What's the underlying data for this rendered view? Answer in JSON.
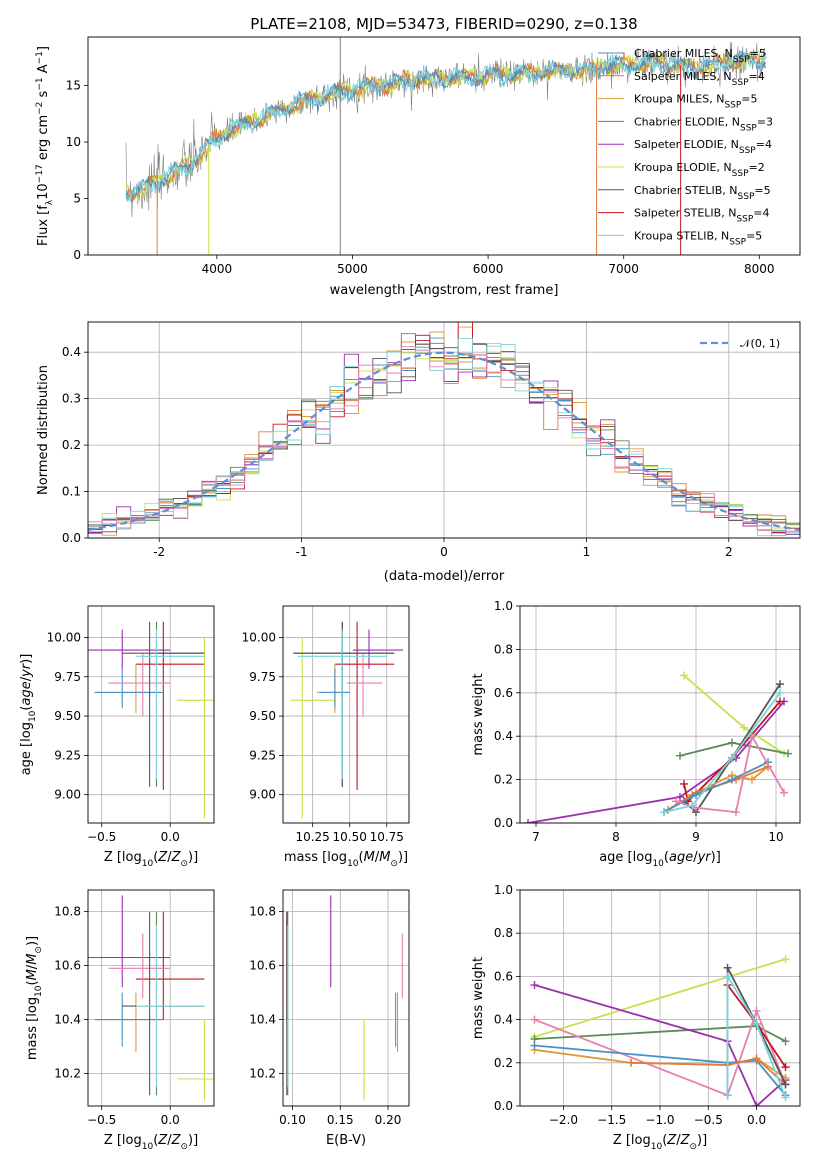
{
  "colors": {
    "chabrier_miles": "#4a90c2",
    "salpeter_miles": "#e07b3a",
    "kroupa_miles": "#e09a3a",
    "chabrier_elodie": "#5b8a5b",
    "salpeter_elodie": "#9b2fae",
    "kroupa_elodie": "#c8e04a",
    "chabrier_stelib": "#555555",
    "salpeter_stelib": "#c01820",
    "kroupa_stelib": "#7dd3dc",
    "pink": "#e67fb0",
    "data_spectrum": "#7f7f7f",
    "normal_curve": "#5b8fd6",
    "grid": "#b0b0b0"
  },
  "chart_data": [
    {
      "id": "spectrum",
      "type": "line",
      "title": "PLATE=2108, MJD=53473, FIBERID=0290, z=0.138",
      "xlabel": "wavelength [Angstrom, rest frame]",
      "ylabel": "Flux [f",
      "ylabel_parts": [
        "Flux [f",
        "λ",
        "10",
        "−17",
        " erg cm",
        "−2",
        " s",
        "−1",
        " A",
        "−1",
        "]"
      ],
      "xlim": [
        3050,
        8300
      ],
      "ylim": [
        0,
        19.3
      ],
      "xticks": [
        4000,
        5000,
        6000,
        7000,
        8000
      ],
      "yticks": [
        0,
        5,
        10,
        15
      ],
      "grid": false,
      "legend_position": "top-right",
      "legend": [
        {
          "label": "Chabrier MILES, N",
          "sub": "SSP",
          "tail": "=5",
          "color_key": "chabrier_miles"
        },
        {
          "label": "Salpeter MILES, N",
          "sub": "SSP",
          "tail": "=4",
          "color_key": "salpeter_miles"
        },
        {
          "label": "Kroupa MILES, N",
          "sub": "SSP",
          "tail": "=5",
          "color_key": "kroupa_miles"
        },
        {
          "label": "Chabrier ELODIE, N",
          "sub": "SSP",
          "tail": "=3",
          "color_key": "chabrier_elodie"
        },
        {
          "label": "Salpeter ELODIE, N",
          "sub": "SSP",
          "tail": "=4",
          "color_key": "salpeter_elodie"
        },
        {
          "label": "Kroupa ELODIE, N",
          "sub": "SSP",
          "tail": "=2",
          "color_key": "kroupa_elodie"
        },
        {
          "label": "Chabrier STELIB, N",
          "sub": "SSP",
          "tail": "=5",
          "color_key": "chabrier_stelib"
        },
        {
          "label": "Salpeter STELIB, N",
          "sub": "SSP",
          "tail": "=4",
          "color_key": "salpeter_stelib"
        },
        {
          "label": "Kroupa STELIB, N",
          "sub": "SSP",
          "tail": "=5",
          "color_key": "kroupa_stelib"
        }
      ],
      "continuum": {
        "x": [
          3330,
          3450,
          3600,
          3800,
          3950,
          4050,
          4300,
          4500,
          4700,
          4900,
          5100,
          5300,
          5500,
          5700,
          5900,
          6100,
          6300,
          6500,
          6700,
          6900,
          7100,
          7300,
          7500,
          7700,
          7900,
          8050
        ],
        "y": [
          5.6,
          5.7,
          6.8,
          8.0,
          9.8,
          10.8,
          12.0,
          13.0,
          13.8,
          14.4,
          14.9,
          15.2,
          15.6,
          15.7,
          15.8,
          16.0,
          16.1,
          16.3,
          16.4,
          16.7,
          16.9,
          17.0,
          16.6,
          16.9,
          17.3,
          17.2
        ]
      },
      "spikes_down": [
        {
          "x": 3560,
          "y": 0.0,
          "color_key": "salpeter_miles"
        },
        {
          "x": 3940,
          "y": 0.0,
          "color_key": "kroupa_elodie"
        },
        {
          "x": 6800,
          "y": 0.0,
          "color_key": "salpeter_miles"
        },
        {
          "x": 7420,
          "y": 0.0,
          "color_key": "salpeter_stelib"
        }
      ],
      "spikes_up": [
        {
          "x": 4910,
          "y": 19.3,
          "color_key": "data_spectrum"
        }
      ]
    },
    {
      "id": "residuals",
      "type": "bar",
      "xlabel": "(data-model)/error",
      "ylabel": "Normed distribution",
      "xlim": [
        -2.5,
        2.5
      ],
      "ylim": [
        0,
        0.465
      ],
      "xticks": [
        -2,
        -1,
        0,
        1,
        2
      ],
      "yticks": [
        0.0,
        0.1,
        0.2,
        0.3,
        0.4
      ],
      "grid": true,
      "legend_position": "top-right",
      "legend": [
        {
          "label": "N(0, 1)",
          "color_key": "normal_curve"
        }
      ],
      "bin_width": 0.1,
      "bin_start": -2.5
    },
    {
      "id": "age_vs_z",
      "type": "scatter",
      "xlabel": "Z [log",
      "ylabel": "age  [log",
      "xlim": [
        -0.6,
        0.32
      ],
      "ylim": [
        8.82,
        10.2
      ],
      "xticks": [
        -0.5,
        0.0
      ],
      "xtick_labels": [
        "−0.5",
        "0.0"
      ],
      "yticks": [
        9.0,
        9.25,
        9.5,
        9.75,
        10.0
      ],
      "ytick_labels": [
        "9.00",
        "9.25",
        "9.50",
        "9.75",
        "10.00"
      ],
      "grid": true
    },
    {
      "id": "age_vs_mass",
      "type": "scatter",
      "xlabel": "mass [log",
      "ylabel": "",
      "xlim": [
        10.05,
        10.9
      ],
      "ylim": [
        8.82,
        10.2
      ],
      "xticks": [
        10.25,
        10.5,
        10.75
      ],
      "xtick_labels": [
        "10.25",
        "10.50",
        "10.75"
      ],
      "yticks": [
        9.0,
        9.25,
        9.5,
        9.75,
        10.0
      ],
      "ytick_labels": [
        "9.00",
        "9.25",
        "9.50",
        "9.75",
        "10.00"
      ],
      "grid": true
    },
    {
      "id": "massweight_vs_age",
      "type": "line",
      "xlabel": "age  [log",
      "ylabel": "mass weight",
      "xlim": [
        6.8,
        10.3
      ],
      "ylim": [
        0,
        1.0
      ],
      "xticks": [
        7,
        8,
        9,
        10
      ],
      "yticks": [
        0.0,
        0.2,
        0.4,
        0.6,
        0.8,
        1.0
      ],
      "ytick_labels": [
        "0.0",
        "0.2",
        "0.4",
        "0.6",
        "0.8",
        "1.0"
      ],
      "grid": true,
      "series": [
        {
          "color_key": "kroupa_elodie",
          "x": [
            8.85,
            9.6,
            10.1
          ],
          "y": [
            0.68,
            0.44,
            0.32
          ]
        },
        {
          "color_key": "chabrier_elodie",
          "x": [
            8.8,
            9.45,
            10.15
          ],
          "y": [
            0.31,
            0.37,
            0.32
          ]
        },
        {
          "color_key": "salpeter_elodie",
          "x": [
            6.9,
            8.8,
            9.5,
            10.1
          ],
          "y": [
            0.0,
            0.12,
            0.3,
            0.56
          ]
        },
        {
          "color_key": "chabrier_stelib",
          "x": [
            8.85,
            9.0,
            9.45,
            10.05
          ],
          "y": [
            0.1,
            0.05,
            0.3,
            0.64
          ]
        },
        {
          "color_key": "salpeter_stelib",
          "x": [
            8.85,
            8.9,
            9.45,
            10.05
          ],
          "y": [
            0.18,
            0.1,
            0.3,
            0.56
          ]
        },
        {
          "color_key": "kroupa_miles",
          "x": [
            8.6,
            8.95,
            9.45,
            9.7,
            9.9
          ],
          "y": [
            0.05,
            0.13,
            0.22,
            0.2,
            0.26
          ]
        },
        {
          "color_key": "salpeter_miles",
          "x": [
            8.65,
            9.0,
            9.5,
            9.9
          ],
          "y": [
            0.06,
            0.14,
            0.2,
            0.26
          ]
        },
        {
          "color_key": "chabrier_miles",
          "x": [
            8.6,
            9.0,
            9.45,
            9.9
          ],
          "y": [
            0.05,
            0.13,
            0.2,
            0.28
          ]
        },
        {
          "color_key": "pink",
          "x": [
            8.75,
            9.0,
            9.5,
            9.7,
            10.1
          ],
          "y": [
            0.1,
            0.07,
            0.05,
            0.4,
            0.14
          ]
        },
        {
          "color_key": "kroupa_stelib",
          "x": [
            8.6,
            8.95,
            9.45,
            10.05
          ],
          "y": [
            0.05,
            0.08,
            0.3,
            0.6
          ]
        }
      ]
    },
    {
      "id": "mass_vs_z",
      "type": "scatter",
      "xlabel": "Z [log",
      "ylabel": "mass [log",
      "xlim": [
        -0.6,
        0.32
      ],
      "ylim": [
        10.08,
        10.88
      ],
      "xticks": [
        -0.5,
        0.0
      ],
      "xtick_labels": [
        "−0.5",
        "0.0"
      ],
      "yticks": [
        10.2,
        10.4,
        10.6,
        10.8
      ],
      "ytick_labels": [
        "10.2",
        "10.4",
        "10.6",
        "10.8"
      ],
      "grid": true
    },
    {
      "id": "mass_vs_ebv",
      "type": "scatter",
      "xlabel": "E(B-V)",
      "ylabel": "",
      "xlim": [
        0.09,
        0.222
      ],
      "ylim": [
        10.08,
        10.88
      ],
      "xticks": [
        0.1,
        0.15,
        0.2
      ],
      "xtick_labels": [
        "0.10",
        "0.15",
        "0.20"
      ],
      "yticks": [
        10.2,
        10.4,
        10.6,
        10.8
      ],
      "ytick_labels": [
        "10.2",
        "10.4",
        "10.6",
        "10.8"
      ],
      "grid": true
    },
    {
      "id": "massweight_vs_z",
      "type": "line",
      "xlabel": "Z [log",
      "ylabel": "mass weight",
      "xlim": [
        -2.45,
        0.45
      ],
      "ylim": [
        0,
        1.0
      ],
      "xticks": [
        -2.0,
        -1.5,
        -1.0,
        -0.5,
        0.0
      ],
      "xtick_labels": [
        "−2.0",
        "−1.5",
        "−1.0",
        "−0.5",
        "0.0"
      ],
      "yticks": [
        0.0,
        0.2,
        0.4,
        0.6,
        0.8,
        1.0
      ],
      "ytick_labels": [
        "0.0",
        "0.2",
        "0.4",
        "0.6",
        "0.8",
        "1.0"
      ],
      "grid": true,
      "series": [
        {
          "color_key": "kroupa_elodie",
          "x": [
            -2.3,
            0.3
          ],
          "y": [
            0.32,
            0.68
          ]
        },
        {
          "color_key": "chabrier_elodie",
          "x": [
            -2.3,
            0.0,
            0.3
          ],
          "y": [
            0.31,
            0.37,
            0.3
          ]
        },
        {
          "color_key": "salpeter_elodie",
          "x": [
            -2.3,
            -0.3,
            0.0,
            0.3
          ],
          "y": [
            0.56,
            0.3,
            0.0,
            0.12
          ]
        },
        {
          "color_key": "pink",
          "x": [
            -2.3,
            -0.3,
            0.0,
            0.3
          ],
          "y": [
            0.4,
            0.05,
            0.44,
            0.1
          ]
        },
        {
          "color_key": "kroupa_miles",
          "x": [
            -2.3,
            -1.3,
            -0.3,
            0.0,
            0.3
          ],
          "y": [
            0.26,
            0.2,
            0.19,
            0.22,
            0.13
          ]
        },
        {
          "color_key": "chabrier_miles",
          "x": [
            -2.3,
            -0.3,
            0.0,
            0.3
          ],
          "y": [
            0.28,
            0.2,
            0.21,
            0.05
          ]
        },
        {
          "color_key": "salpeter_miles",
          "x": [
            -1.3,
            -0.3,
            0.0,
            0.3
          ],
          "y": [
            0.2,
            0.19,
            0.22,
            0.1
          ]
        },
        {
          "color_key": "chabrier_stelib",
          "x": [
            -0.3,
            -0.3,
            0.0,
            0.3
          ],
          "y": [
            0.05,
            0.64,
            0.38,
            0.1
          ]
        },
        {
          "color_key": "salpeter_stelib",
          "x": [
            -0.3,
            0.0,
            0.3
          ],
          "y": [
            0.56,
            0.38,
            0.18
          ]
        },
        {
          "color_key": "kroupa_stelib",
          "x": [
            -0.3,
            -0.3,
            0.0,
            0.3
          ],
          "y": [
            0.05,
            0.6,
            0.38,
            0.04
          ]
        }
      ]
    }
  ],
  "errorbars": {
    "note_keys": [
      "z",
      "age",
      "mass",
      "ebv"
    ],
    "items": [
      {
        "color_key": "chabrier_elodie",
        "z": -0.1,
        "z_err": [
          -0.1,
          0.25
        ],
        "age": 9.9,
        "age_err": [
          9.05,
          10.1
        ],
        "mass": 10.45,
        "mass_err": [
          10.12,
          10.8
        ],
        "ebv": 0.095
      },
      {
        "color_key": "salpeter_elodie",
        "z": -0.35,
        "z_err": [
          -0.6,
          0.0
        ],
        "age": 9.92,
        "age_err": [
          9.8,
          10.05
        ],
        "mass": 10.63,
        "mass_err": [
          10.52,
          10.86
        ],
        "ebv": 0.14
      },
      {
        "color_key": "salpeter_stelib",
        "z": -0.05,
        "z_err": [
          -0.25,
          0.25
        ],
        "age": 9.83,
        "age_err": [
          9.03,
          10.1
        ],
        "mass": 10.55,
        "mass_err": [
          10.4,
          10.8
        ],
        "ebv": 0.094
      },
      {
        "color_key": "kroupa_elodie",
        "z": 0.25,
        "z_err": [
          0.05,
          0.32
        ],
        "age": 9.6,
        "age_err": [
          8.85,
          10.0
        ],
        "mass": 10.18,
        "mass_err": [
          10.1,
          10.4
        ],
        "ebv": 0.175
      },
      {
        "color_key": "kroupa_miles",
        "z": -0.25,
        "z_err": [
          -0.55,
          -0.1
        ],
        "age": 9.65,
        "age_err": [
          9.52,
          9.83
        ],
        "mass": 10.4,
        "mass_err": [
          10.28,
          10.5
        ],
        "ebv": 0.21
      },
      {
        "color_key": "chabrier_miles",
        "z": -0.35,
        "z_err": [
          -0.55,
          -0.05
        ],
        "age": 9.65,
        "age_err": [
          9.55,
          9.8
        ],
        "mass": 10.4,
        "mass_err": [
          10.3,
          10.5
        ],
        "ebv": 0.208
      },
      {
        "color_key": "pink",
        "z": -0.2,
        "z_err": [
          -0.45,
          0.0
        ],
        "age": 9.71,
        "age_err": [
          9.5,
          9.9
        ],
        "mass": 10.59,
        "mass_err": [
          10.48,
          10.72
        ],
        "ebv": 0.215
      },
      {
        "color_key": "chabrier_stelib",
        "z": -0.15,
        "z_err": [
          -0.35,
          0.25
        ],
        "age": 9.9,
        "age_err": [
          9.05,
          10.1
        ],
        "mass": 10.45,
        "mass_err": [
          10.12,
          10.8
        ],
        "ebv": 0.094
      },
      {
        "color_key": "kroupa_stelib",
        "z": -0.1,
        "z_err": [
          -0.25,
          0.25
        ],
        "age": 9.88,
        "age_err": [
          9.1,
          10.05
        ],
        "mass": 10.45,
        "mass_err": [
          10.15,
          10.75
        ],
        "ebv": 0.095
      }
    ]
  }
}
